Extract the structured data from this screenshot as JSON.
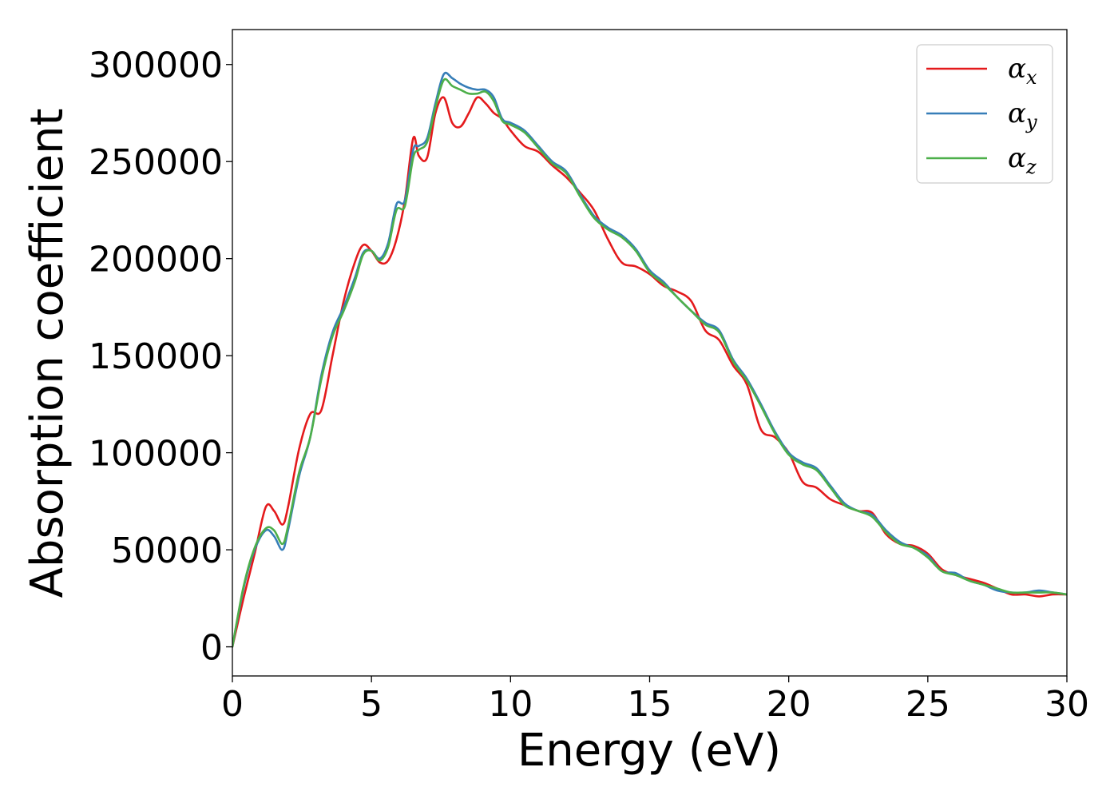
{
  "chart_data": {
    "type": "line",
    "title": "",
    "xlabel": "Energy (eV)",
    "ylabel": "Absorption coefficient",
    "xlim": [
      0,
      30
    ],
    "ylim": [
      -15000,
      318000
    ],
    "xticks": [
      0,
      5,
      10,
      15,
      20,
      25,
      30
    ],
    "yticks": [
      0,
      50000,
      100000,
      150000,
      200000,
      250000,
      300000
    ],
    "grid": false,
    "legend_position": "top-right",
    "series": [
      {
        "name": "αx",
        "symbol": "α",
        "subscript": "x",
        "color": "#e41a1c",
        "x": [
          0,
          0.4,
          0.8,
          1.2,
          1.5,
          1.8,
          2.0,
          2.4,
          2.8,
          3.2,
          3.6,
          4.0,
          4.4,
          4.7,
          5.0,
          5.3,
          5.6,
          5.9,
          6.2,
          6.5,
          6.7,
          7.0,
          7.3,
          7.6,
          7.9,
          8.2,
          8.5,
          8.8,
          9.1,
          9.4,
          9.7,
          10.0,
          10.5,
          11.0,
          11.5,
          12.0,
          12.5,
          13.0,
          13.5,
          14.0,
          14.5,
          15.0,
          15.5,
          16.0,
          16.5,
          17.0,
          17.5,
          18.0,
          18.5,
          19.0,
          19.5,
          20.0,
          20.5,
          21.0,
          21.5,
          22.0,
          22.5,
          23.0,
          23.5,
          24.0,
          24.5,
          25.0,
          25.5,
          26.0,
          26.5,
          27.0,
          27.5,
          28.0,
          28.5,
          29.0,
          29.5,
          30.0
        ],
        "y": [
          0,
          25000,
          48000,
          72000,
          70000,
          63000,
          72000,
          102000,
          120000,
          122000,
          150000,
          178000,
          198000,
          207000,
          204000,
          198000,
          199000,
          210000,
          230000,
          262000,
          253000,
          252000,
          275000,
          283000,
          270000,
          268000,
          275000,
          283000,
          280000,
          275000,
          272000,
          266000,
          258000,
          255000,
          248000,
          242000,
          234000,
          225000,
          210000,
          198000,
          196000,
          192000,
          186000,
          183000,
          178000,
          163000,
          158000,
          145000,
          135000,
          112000,
          108000,
          100000,
          85000,
          82000,
          76000,
          73000,
          70000,
          69000,
          58000,
          53000,
          52000,
          48000,
          40000,
          37000,
          35000,
          33000,
          30000,
          27000,
          27000,
          26000,
          27000,
          27000
        ]
      },
      {
        "name": "αy",
        "symbol": "α",
        "subscript": "y",
        "color": "#377eb8",
        "x": [
          0,
          0.4,
          0.8,
          1.2,
          1.5,
          1.8,
          2.0,
          2.4,
          2.8,
          3.2,
          3.6,
          4.0,
          4.4,
          4.7,
          5.0,
          5.3,
          5.6,
          5.9,
          6.2,
          6.5,
          6.7,
          7.0,
          7.3,
          7.6,
          7.9,
          8.2,
          8.5,
          8.8,
          9.1,
          9.4,
          9.7,
          10.0,
          10.5,
          11.0,
          11.5,
          12.0,
          12.5,
          13.0,
          13.5,
          14.0,
          14.5,
          15.0,
          15.5,
          16.0,
          16.5,
          17.0,
          17.5,
          18.0,
          18.5,
          19.0,
          19.5,
          20.0,
          20.5,
          21.0,
          21.5,
          22.0,
          22.5,
          23.0,
          23.5,
          24.0,
          24.5,
          25.0,
          25.5,
          26.0,
          26.5,
          27.0,
          27.5,
          28.0,
          28.5,
          29.0,
          29.5,
          30.0
        ],
        "y": [
          0,
          30000,
          50000,
          60000,
          57000,
          50000,
          60000,
          88000,
          108000,
          140000,
          162000,
          175000,
          190000,
          203000,
          204000,
          200000,
          208000,
          228000,
          230000,
          256000,
          258000,
          262000,
          280000,
          295000,
          293000,
          290000,
          288000,
          287000,
          287000,
          283000,
          272000,
          270000,
          266000,
          258000,
          250000,
          245000,
          233000,
          222000,
          216000,
          212000,
          205000,
          194000,
          188000,
          180000,
          173000,
          167000,
          163000,
          148000,
          138000,
          125000,
          111000,
          100000,
          95000,
          92000,
          83000,
          74000,
          70000,
          68000,
          60000,
          54000,
          51000,
          47000,
          39000,
          38000,
          34000,
          32000,
          29000,
          28000,
          28000,
          29000,
          28000,
          27000
        ]
      },
      {
        "name": "αz",
        "symbol": "α",
        "subscript": "z",
        "color": "#4daf4a",
        "x": [
          0,
          0.4,
          0.8,
          1.2,
          1.5,
          1.8,
          2.0,
          2.4,
          2.8,
          3.2,
          3.6,
          4.0,
          4.4,
          4.7,
          5.0,
          5.3,
          5.6,
          5.9,
          6.2,
          6.5,
          6.7,
          7.0,
          7.3,
          7.6,
          7.9,
          8.2,
          8.5,
          8.8,
          9.1,
          9.4,
          9.7,
          10.0,
          10.5,
          11.0,
          11.5,
          12.0,
          12.5,
          13.0,
          13.5,
          14.0,
          14.5,
          15.0,
          15.5,
          16.0,
          16.5,
          17.0,
          17.5,
          18.0,
          18.5,
          19.0,
          19.5,
          20.0,
          20.5,
          21.0,
          21.5,
          22.0,
          22.5,
          23.0,
          23.5,
          24.0,
          24.5,
          25.0,
          25.5,
          26.0,
          26.5,
          27.0,
          27.5,
          28.0,
          28.5,
          29.0,
          29.5,
          30.0
        ],
        "y": [
          0,
          31000,
          51000,
          61000,
          60000,
          53000,
          62000,
          90000,
          108000,
          138000,
          160000,
          173000,
          188000,
          202000,
          204000,
          199000,
          206000,
          225000,
          227000,
          252000,
          256000,
          260000,
          278000,
          292000,
          289000,
          287000,
          285000,
          285000,
          286000,
          281000,
          271000,
          269000,
          265000,
          257000,
          249000,
          244000,
          232000,
          221000,
          215000,
          211000,
          204000,
          193000,
          187000,
          180000,
          173000,
          166000,
          162000,
          147000,
          137000,
          124000,
          110000,
          99000,
          94000,
          91000,
          82000,
          73000,
          70000,
          67000,
          59000,
          53000,
          51000,
          46000,
          39000,
          37000,
          34000,
          32000,
          30000,
          28000,
          28000,
          28000,
          28000,
          27000
        ]
      }
    ]
  }
}
